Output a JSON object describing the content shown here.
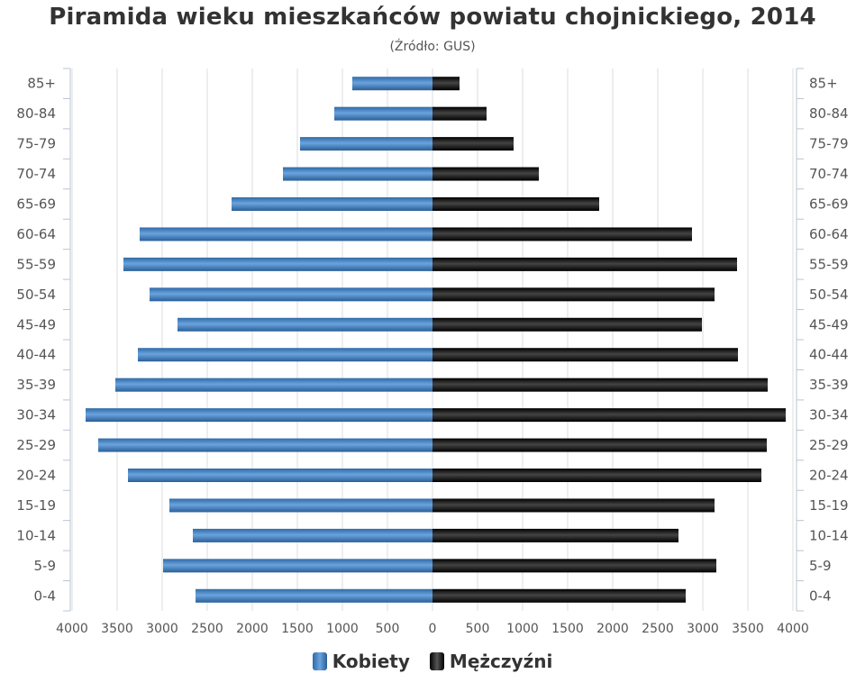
{
  "chart_data": {
    "type": "bar",
    "orientation": "horizontal-population-pyramid",
    "title": "Piramida wieku mieszkańców powiatu chojnickiego, 2014",
    "subtitle": "(Źródło: GUS)",
    "categories": [
      "85+",
      "80-84",
      "75-79",
      "70-74",
      "65-69",
      "60-64",
      "55-59",
      "50-54",
      "45-49",
      "40-44",
      "35-39",
      "30-34",
      "25-29",
      "20-24",
      "15-19",
      "10-14",
      "5-9",
      "0-4"
    ],
    "series": [
      {
        "name": "Kobiety",
        "color": "#3d7ab8",
        "values": [
          890,
          1090,
          1470,
          1660,
          2230,
          3250,
          3430,
          3140,
          2830,
          3270,
          3520,
          3850,
          3710,
          3380,
          2920,
          2660,
          2990,
          2630
        ]
      },
      {
        "name": "Mężczyźni",
        "color": "#111111",
        "values": [
          300,
          600,
          900,
          1180,
          1850,
          2880,
          3380,
          3130,
          2990,
          3390,
          3720,
          3920,
          3710,
          3650,
          3130,
          2730,
          3150,
          2810
        ]
      }
    ],
    "x_ticks": [
      "4000",
      "3500",
      "3000",
      "2500",
      "2000",
      "1500",
      "1000",
      "500",
      "0",
      "500",
      "1000",
      "1500",
      "2000",
      "2500",
      "3000",
      "3500",
      "4000"
    ],
    "xlim": [
      -4000,
      4000
    ],
    "grid": true,
    "legend_position": "bottom-center"
  }
}
